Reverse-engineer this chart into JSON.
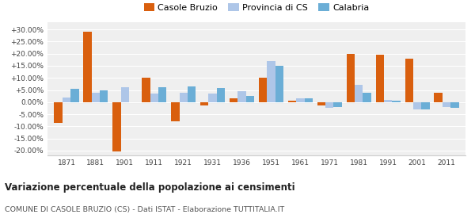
{
  "years": [
    1871,
    1881,
    1901,
    1911,
    1921,
    1931,
    1936,
    1951,
    1961,
    1971,
    1981,
    1991,
    2001,
    2011
  ],
  "casole_bruzio": [
    -8.5,
    29.0,
    -20.5,
    10.0,
    -8.0,
    -1.5,
    1.5,
    10.0,
    0.5,
    -1.5,
    20.0,
    19.5,
    18.0,
    4.0
  ],
  "provincia_cs": [
    2.0,
    4.0,
    6.0,
    3.5,
    4.0,
    3.5,
    4.5,
    17.0,
    1.5,
    -2.5,
    7.0,
    1.0,
    -3.0,
    -2.0
  ],
  "calabria": [
    5.5,
    5.0,
    0.0,
    6.0,
    6.5,
    5.8,
    2.5,
    15.0,
    1.5,
    -2.0,
    4.0,
    0.5,
    -3.0,
    -2.5
  ],
  "color_casole": "#d95f0e",
  "color_provincia": "#aec6e8",
  "color_calabria": "#6baed6",
  "ylim_min": -22,
  "ylim_max": 33,
  "yticks": [
    -20,
    -15,
    -10,
    -5,
    0,
    5,
    10,
    15,
    20,
    25,
    30
  ],
  "title1": "Variazione percentuale della popolazione ai censimenti",
  "title2": "COMUNE DI CASOLE BRUZIO (CS) - Dati ISTAT - Elaborazione TUTTITALIA.IT",
  "legend_labels": [
    "Casole Bruzio",
    "Provincia di CS",
    "Calabria"
  ],
  "bar_width": 0.28,
  "background_color": "#efefef"
}
